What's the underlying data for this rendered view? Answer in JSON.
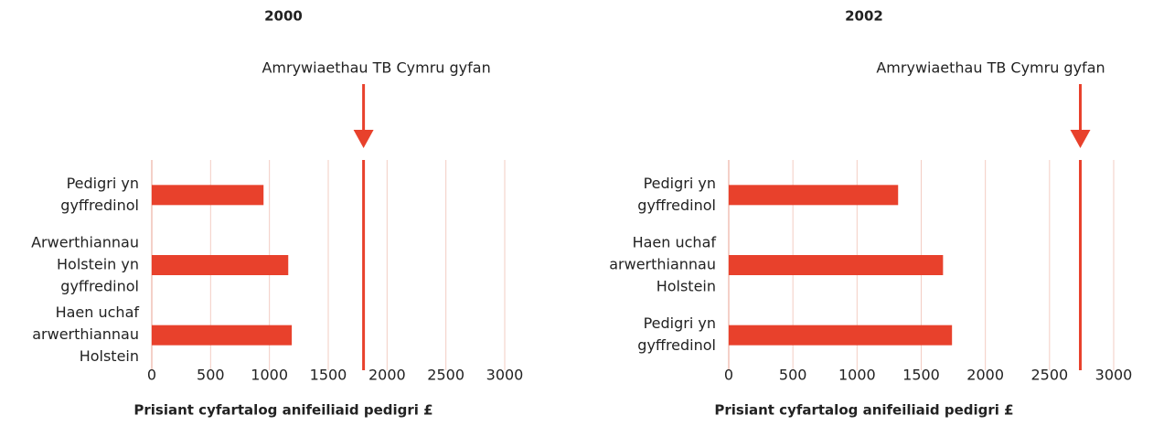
{
  "chart_data": [
    {
      "type": "bar",
      "title": "2000",
      "categories": [
        [
          "Pedigri yn",
          "gyffredinol"
        ],
        [
          "Arwerthiannau",
          "Holstein yn",
          "gyffredinol"
        ],
        [
          "Haen uchaf",
          "arwerthiannau",
          "Holstein"
        ]
      ],
      "values": [
        950,
        1160,
        1190
      ],
      "color": "#e8412c",
      "xlim": [
        0,
        3000
      ],
      "xticks": [
        0,
        500,
        1000,
        1500,
        2000,
        2500,
        3000
      ],
      "grid": true,
      "xlabel": "Prisiant cyfartalog anifeiliaid pedigri £",
      "reference": {
        "label": "Amrywiaethau TB Cymru gyfan",
        "value": 1800
      }
    },
    {
      "type": "bar",
      "title": "2002",
      "categories": [
        [
          "Pedigri yn",
          "gyffredinol"
        ],
        [
          "Haen uchaf",
          "arwerthiannau",
          "Holstein"
        ],
        [
          "Pedigri yn",
          "gyffredinol"
        ]
      ],
      "values": [
        1320,
        1670,
        1740
      ],
      "color": "#e8412c",
      "xlim": [
        0,
        3000
      ],
      "xticks": [
        0,
        500,
        1000,
        1500,
        2000,
        2500,
        3000
      ],
      "grid": true,
      "xlabel": "Prisiant cyfartalog anifeiliaid pedigri £",
      "reference": {
        "label": "Amrywiaethau TB Cymru gyfan",
        "value": 2740
      }
    }
  ]
}
